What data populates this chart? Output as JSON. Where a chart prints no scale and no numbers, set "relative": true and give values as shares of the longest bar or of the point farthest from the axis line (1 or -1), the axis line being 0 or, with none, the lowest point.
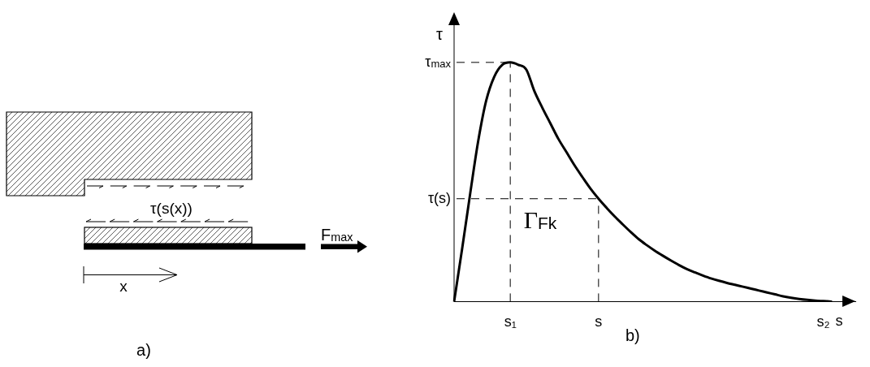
{
  "chart_data": [
    {
      "type": "other",
      "annotations": [
        "τ(s(x))",
        "F$_{max}$",
        "x",
        "a)"
      ]
    },
    {
      "type": "line",
      "categories": [
        null,
        null,
        null,
        null,
        null,
        null,
        null,
        "s₁",
        null,
        null,
        null,
        null,
        null,
        null,
        null,
        null,
        null,
        null,
        "s",
        null,
        null,
        null,
        null,
        null,
        null,
        null,
        null,
        null,
        null,
        null,
        null,
        null,
        null,
        null,
        null,
        null,
        null,
        null,
        null,
        null,
        null,
        null,
        null,
        null,
        null,
        null,
        "s₂",
        null,
        null,
        null,
        null
      ],
      "series": [
        {
          "color": "#000000",
          "values": [
            0,
            0.22,
            0.45,
            0.67,
            0.84,
            0.94,
            0.99,
            1,
            0.99,
            0.97,
            0.88,
            0.81,
            0.745,
            0.68,
            0.625,
            0.57,
            0.52,
            0.472,
            0.43,
            0.392,
            0.356,
            0.323,
            0.291,
            0.261,
            0.236,
            0.213,
            0.192,
            0.172,
            0.153,
            0.136,
            0.122,
            0.109,
            0.097,
            0.087,
            0.078,
            0.07,
            0.062,
            0.054,
            0.046,
            0.038,
            0.03,
            0.022,
            0.016,
            0.011,
            0.007,
            0.004,
            0.002,
            0,
            null,
            null,
            null
          ]
        }
      ],
      "relative": true,
      "xlabel": "s",
      "ylabel": "τ",
      "ref_lines": [
        {
          "axis": "x",
          "value": "s₁",
          "line_style": "dashed"
        },
        {
          "axis": "x",
          "value": "s",
          "line_style": "dashed"
        },
        {
          "axis": "y",
          "value": 1,
          "label": "τ$_{max}$",
          "line_style": "dashed"
        },
        {
          "axis": "y",
          "value": 0.43,
          "label": "τ(s)",
          "line_style": "dashed"
        }
      ],
      "annotations": [
        "Γ$_{Fk}$",
        "b)"
      ],
      "legend": false,
      "marker": "none",
      "line_style": "solid",
      "grid": false
    }
  ]
}
